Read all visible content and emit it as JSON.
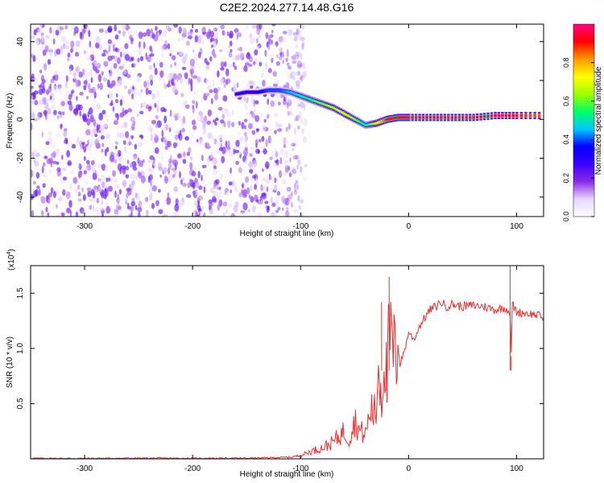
{
  "page": {
    "title": "C2E2.2024.277.14.48.G16"
  },
  "chart_data": [
    {
      "type": "heatmap",
      "title": "C2E2.2024.277.14.48.G16",
      "xlabel": "Height of straight line (km)",
      "ylabel": "Frequency (Hz)",
      "xlim": [
        -350,
        125
      ],
      "ylim": [
        -50,
        49
      ],
      "x_ticks": [
        -300,
        -200,
        -100,
        0,
        100
      ],
      "x_tick_labels": [
        "-300",
        "-200",
        "-100",
        "0",
        "100"
      ],
      "y_ticks": [
        -40,
        -20,
        0,
        20,
        40
      ],
      "y_tick_labels": [
        "-40",
        "-20",
        "0",
        "20",
        "40"
      ],
      "colorbar": {
        "label": "Normalized spectral amplitude",
        "range": [
          0.0,
          1.0
        ],
        "ticks": [
          0.0,
          0.2,
          0.4,
          0.6,
          0.8
        ],
        "tick_labels": [
          "0.0",
          "0.2",
          "0.4",
          "0.6",
          "0.8"
        ],
        "colormap": [
          "#ffffff",
          "#e6d6ff",
          "#8a2be2",
          "#3b00ff",
          "#0000ff",
          "#00c8ff",
          "#00ff66",
          "#a0ff00",
          "#ffff00",
          "#ff9900",
          "#ff0000",
          "#ff0080"
        ]
      },
      "noise_region": {
        "x": [
          -350,
          -95
        ],
        "frequency": [
          -50,
          49
        ],
        "amplitude_range": [
          0.05,
          0.25
        ]
      },
      "signal_track": {
        "x": [
          -160,
          -150,
          -140,
          -130,
          -120,
          -110,
          -100,
          -90,
          -80,
          -70,
          -60,
          -50,
          -40,
          -30,
          -20,
          -10,
          0,
          20,
          40,
          60,
          80,
          100,
          125
        ],
        "frequency": [
          13,
          14,
          14,
          15,
          15,
          14,
          12,
          10,
          8,
          6,
          3,
          0,
          -3,
          -2,
          0,
          1,
          1,
          1,
          1,
          1,
          2,
          2,
          2
        ],
        "amplitude": [
          0.3,
          0.35,
          0.35,
          0.4,
          0.4,
          0.45,
          0.5,
          0.55,
          0.6,
          0.65,
          0.7,
          0.6,
          0.5,
          0.7,
          0.9,
          0.9,
          0.95,
          0.95,
          0.95,
          0.95,
          0.95,
          0.9,
          0.85
        ]
      }
    },
    {
      "type": "line",
      "xlabel": "Height of straight line (km)",
      "ylabel": "SNR (10 * v/v)",
      "y_multiplier_label": "(x10",
      "y_multiplier_exponent": "4",
      "y_multiplier_close": ")",
      "xlim": [
        -350,
        125
      ],
      "ylim": [
        0,
        17500
      ],
      "x_ticks": [
        -300,
        -200,
        -100,
        0,
        100
      ],
      "x_tick_labels": [
        "-300",
        "-200",
        "-100",
        "0",
        "100"
      ],
      "y_ticks": [
        5000,
        10000,
        15000
      ],
      "y_tick_labels": [
        "0.5",
        "1.0",
        "1.5"
      ],
      "series": [
        {
          "color": "#e83030",
          "x": [
            -350,
            -300,
            -250,
            -200,
            -150,
            -110,
            -100,
            -90,
            -80,
            -70,
            -60,
            -55,
            -50,
            -45,
            -40,
            -35,
            -30,
            -28,
            -25,
            -22,
            -20,
            -18,
            -15,
            -12,
            -10,
            -8,
            -5,
            -2,
            0,
            5,
            10,
            15,
            20,
            25,
            30,
            35,
            40,
            50,
            60,
            70,
            80,
            90,
            94,
            95,
            96,
            100,
            110,
            120,
            125
          ],
          "y": [
            50,
            40,
            60,
            50,
            60,
            150,
            300,
            700,
            1000,
            1500,
            2500,
            1800,
            3500,
            2500,
            2200,
            4500,
            4000,
            9000,
            5500,
            10000,
            6500,
            11500,
            10000,
            9000,
            10500,
            8500,
            9500,
            10500,
            11500,
            10800,
            12000,
            12800,
            13500,
            13800,
            14200,
            13800,
            14000,
            13800,
            13900,
            13800,
            13500,
            13700,
            13200,
            9500,
            14000,
            13300,
            13200,
            13000,
            12800
          ],
          "spikes": [
            {
              "x": -18,
              "y": 16500
            },
            {
              "x": -25,
              "y": 14200
            },
            {
              "x": 94,
              "y": 17500
            },
            {
              "x": 95,
              "y": 9300
            }
          ]
        }
      ]
    }
  ]
}
